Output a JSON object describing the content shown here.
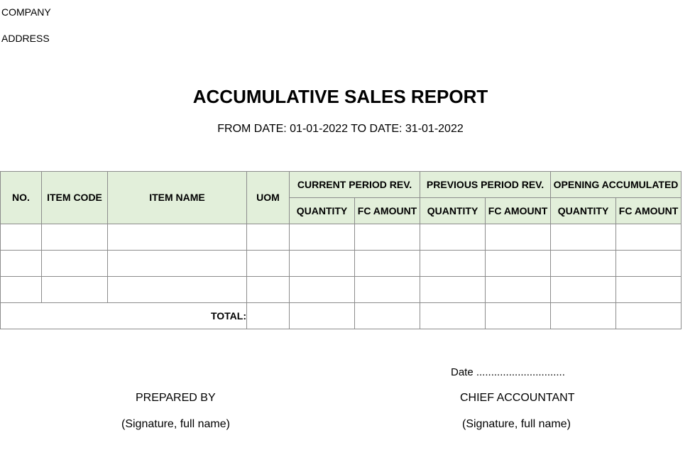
{
  "header": {
    "company_label": "COMPANY",
    "address_label": "ADDRESS"
  },
  "report": {
    "title": "ACCUMULATIVE SALES REPORT",
    "subtitle": "FROM DATE: 01-01-2022 TO DATE: 31-01-2022"
  },
  "table": {
    "columns": {
      "no": "NO.",
      "item_code": "ITEM CODE",
      "item_name": "ITEM NAME",
      "uom": "UOM"
    },
    "groups": {
      "current": "CURRENT PERIOD REV.",
      "previous": "PREVIOUS PERIOD REV.",
      "opening": "OPENING ACCUMULATED"
    },
    "sub_columns": {
      "quantity": "QUANTITY",
      "fc_amount": "FC AMOUNT"
    },
    "rows": [
      [
        "",
        "",
        "",
        "",
        "",
        "",
        "",
        "",
        "",
        ""
      ],
      [
        "",
        "",
        "",
        "",
        "",
        "",
        "",
        "",
        "",
        ""
      ],
      [
        "",
        "",
        "",
        "",
        "",
        "",
        "",
        "",
        "",
        ""
      ]
    ],
    "total_label": "TOTAL:"
  },
  "footer": {
    "date_line": "Date ..............................",
    "prepared_by": "PREPARED BY",
    "chief_accountant": "CHIEF ACCOUNTANT",
    "signature_left": "(Signature, full name)",
    "signature_right": "(Signature, full name)"
  }
}
